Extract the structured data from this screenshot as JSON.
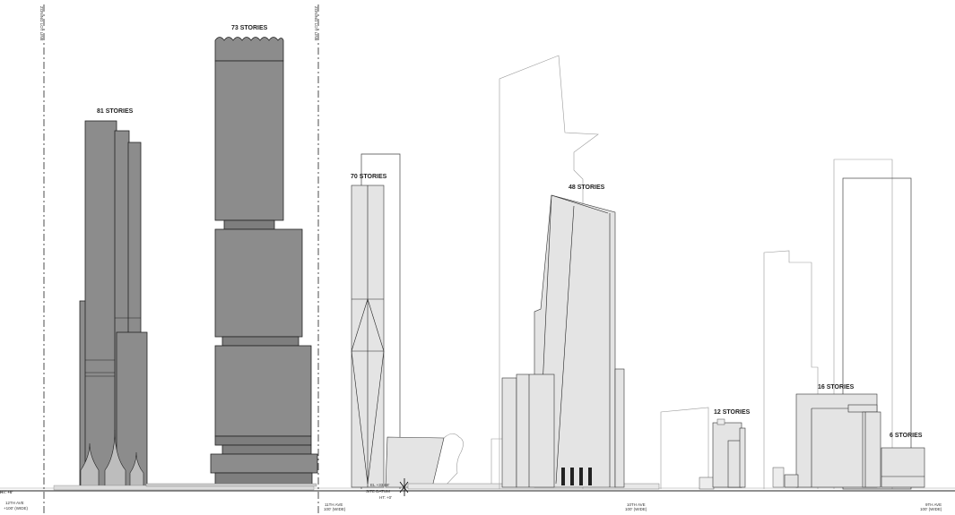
{
  "labels": {
    "b81": "81 STORIES",
    "b73": "73 STORIES",
    "b70": "70 STORIES",
    "b48": "48 STORIES",
    "b12": "12 STORIES",
    "b16": "16 STORIES",
    "b6": "6 STORIES"
  },
  "zoning": {
    "left": "ZONING LOT LINE",
    "right": "ZONING LOT LINE"
  },
  "datum": {
    "left": "HT: +0'",
    "el": "EL +33.68'",
    "site_datum": "SITE DATUM",
    "ht": "HT: +0'"
  },
  "avenues": {
    "a12_name": "12TH AVE",
    "a12_width": "+100' (WIDE)",
    "a11_name": "11TH AVE",
    "a11_width": "100' (WIDE)",
    "a10_name": "10TH AVE",
    "a10_width": "100' (WIDE)",
    "a9_name": "9TH AVE",
    "a9_width": "100' (WIDE)"
  }
}
